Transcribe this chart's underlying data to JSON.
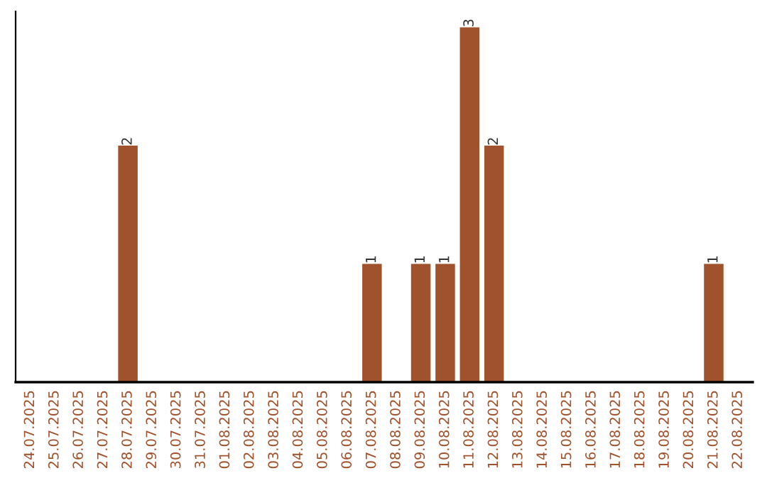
{
  "chart_data": {
    "type": "bar",
    "categories": [
      "24.07.2025",
      "25.07.2025",
      "26.07.2025",
      "27.07.2025",
      "28.07.2025",
      "29.07.2025",
      "30.07.2025",
      "31.07.2025",
      "01.08.2025",
      "02.08.2025",
      "03.08.2025",
      "04.08.2025",
      "05.08.2025",
      "06.08.2025",
      "07.08.2025",
      "08.08.2025",
      "09.08.2025",
      "10.08.2025",
      "11.08.2025",
      "12.08.2025",
      "13.08.2025",
      "14.08.2025",
      "15.08.2025",
      "16.08.2025",
      "17.08.2025",
      "18.08.2025",
      "19.08.2025",
      "20.08.2025",
      "21.08.2025",
      "22.08.2025"
    ],
    "values": [
      0,
      0,
      0,
      0,
      2,
      0,
      0,
      0,
      0,
      0,
      0,
      0,
      0,
      0,
      1,
      0,
      1,
      1,
      3,
      2,
      0,
      0,
      0,
      0,
      0,
      0,
      0,
      0,
      1,
      0
    ],
    "color": "#a0522d",
    "value_labels": [
      null,
      null,
      null,
      null,
      "2",
      null,
      null,
      null,
      null,
      null,
      null,
      null,
      null,
      null,
      "1",
      null,
      "1",
      "1",
      "3",
      "2",
      null,
      null,
      null,
      null,
      null,
      null,
      null,
      null,
      "1",
      null
    ],
    "tick_labels": "x",
    "grid": false,
    "legend": false
  }
}
